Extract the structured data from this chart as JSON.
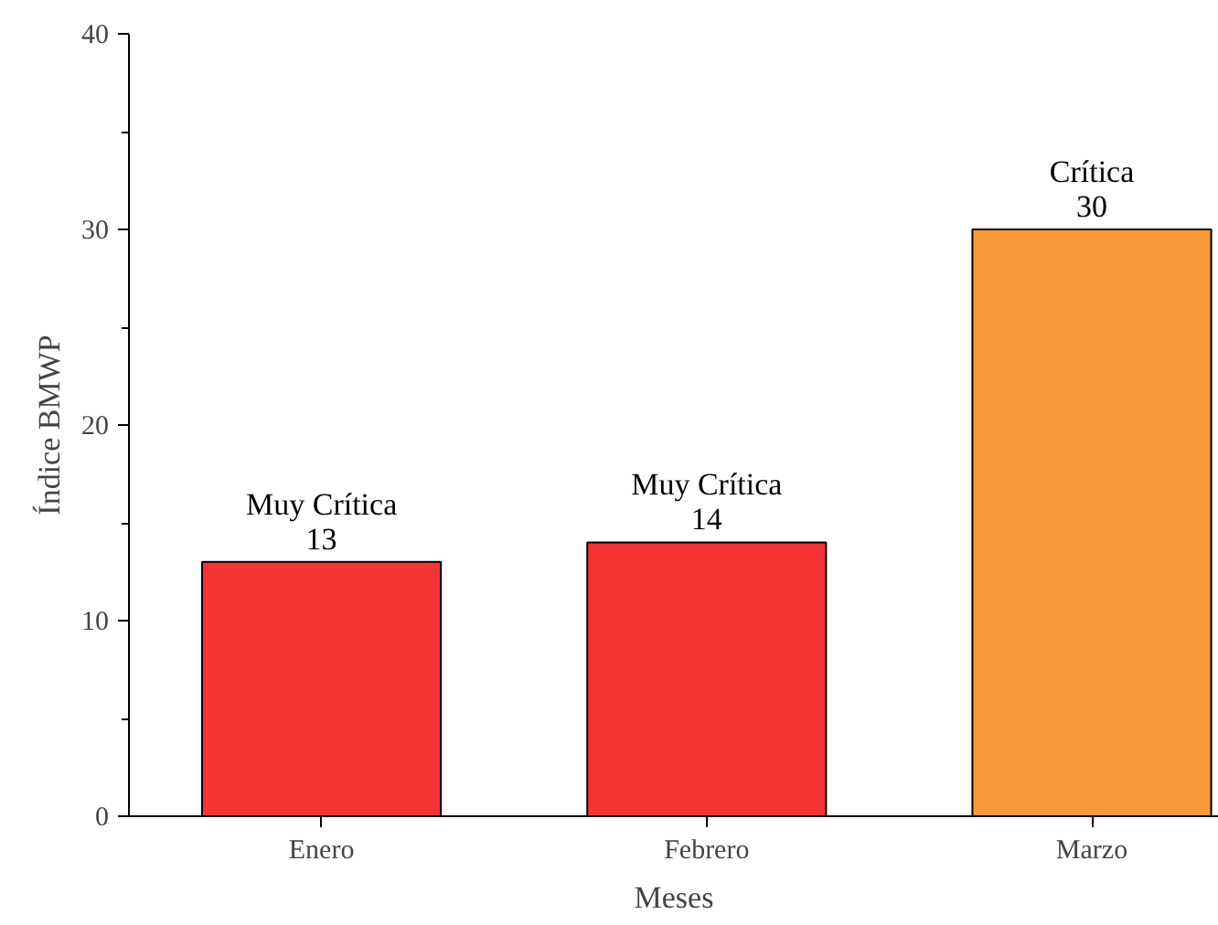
{
  "chart_data": {
    "type": "bar",
    "xlabel": "Meses",
    "ylabel": "Índice BMWP",
    "categories": [
      "Enero",
      "Febrero",
      "Marzo"
    ],
    "values": [
      13,
      14,
      30
    ],
    "colors": [
      "#f53535",
      "#f53535",
      "#f7993a"
    ],
    "value_labels": [
      "Muy Crítica\n13",
      "Muy Crítica\n14",
      "Crítica\n30"
    ],
    "ylim": [
      0,
      40
    ],
    "yticks": [
      0,
      10,
      20,
      30,
      40
    ],
    "grid": false
  }
}
